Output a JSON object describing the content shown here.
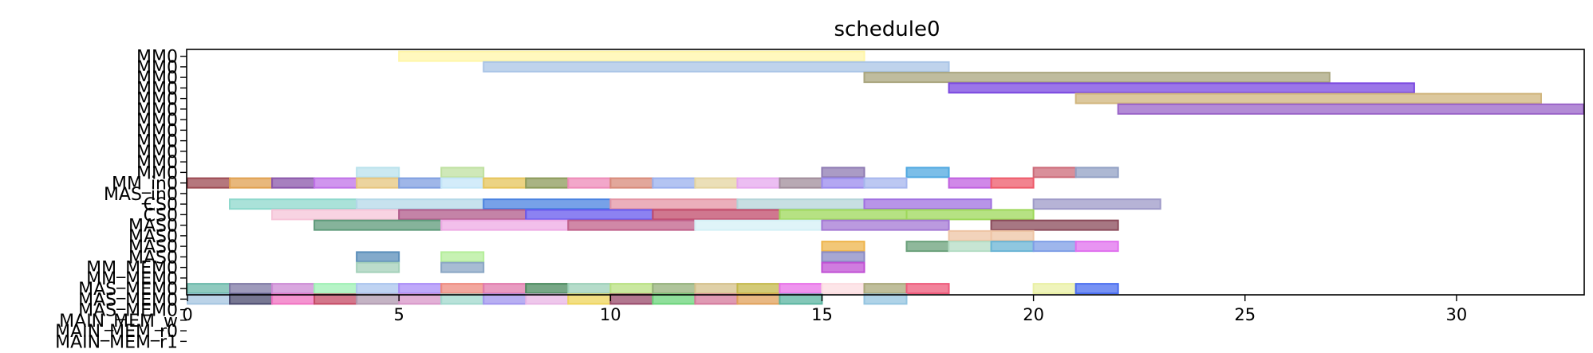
{
  "chart_data": {
    "type": "gantt",
    "title": "schedule0",
    "xlim": [
      0,
      33
    ],
    "xticks": [
      0,
      5,
      10,
      15,
      20,
      25,
      30
    ],
    "rows": [
      "MM0",
      "MM0",
      "MM0",
      "MM0",
      "MM0",
      "MM0",
      "MM0",
      "MM0",
      "MM0",
      "MM0",
      "MM0",
      "MM0",
      "MM_in0",
      "MAS_in0",
      "CS0",
      "CS0",
      "MAS0",
      "MAS0",
      "MAS0",
      "MAS0",
      "MM_MEM0",
      "MM_MEM0",
      "MAS_MEM0",
      "MAS_MEM0",
      "MAS_MEM0",
      "MAIN_MEM_w",
      "MAIN_MEM_r0",
      "MAIN_MEM_r1"
    ],
    "tasks": [
      {
        "row": 0,
        "start": 5,
        "end": 16,
        "color": "#fff6a8"
      },
      {
        "row": 1,
        "start": 7,
        "end": 18,
        "color": "#a9c4e6"
      },
      {
        "row": 2,
        "start": 16,
        "end": 27,
        "color": "#a9a57e"
      },
      {
        "row": 3,
        "start": 18,
        "end": 29,
        "color": "#7a48e0"
      },
      {
        "row": 4,
        "start": 21,
        "end": 32,
        "color": "#d0b57c"
      },
      {
        "row": 5,
        "start": 22,
        "end": 33,
        "color": "#9a64c8"
      },
      {
        "row": 11,
        "start": 4,
        "end": 5,
        "color": "#b9e2ec"
      },
      {
        "row": 11,
        "start": 6,
        "end": 7,
        "color": "#bfe0a0"
      },
      {
        "row": 11,
        "start": 15,
        "end": 16,
        "color": "#8e7ab2"
      },
      {
        "row": 11,
        "start": 17,
        "end": 18,
        "color": "#4fa8e0"
      },
      {
        "row": 11,
        "start": 20,
        "end": 21,
        "color": "#cc6a78"
      },
      {
        "row": 11,
        "start": 21,
        "end": 22,
        "color": "#91a0c4"
      },
      {
        "row": 12,
        "start": 0,
        "end": 1,
        "color": "#9c4a52"
      },
      {
        "row": 12,
        "start": 1,
        "end": 2,
        "color": "#e0a050"
      },
      {
        "row": 12,
        "start": 2,
        "end": 3,
        "color": "#8a56aa"
      },
      {
        "row": 12,
        "start": 3,
        "end": 4,
        "color": "#c071e8"
      },
      {
        "row": 12,
        "start": 4,
        "end": 5,
        "color": "#e6c57e"
      },
      {
        "row": 12,
        "start": 5,
        "end": 6,
        "color": "#7f9ee0"
      },
      {
        "row": 12,
        "start": 6,
        "end": 7,
        "color": "#c4e6f8"
      },
      {
        "row": 12,
        "start": 7,
        "end": 8,
        "color": "#e6c45a"
      },
      {
        "row": 12,
        "start": 8,
        "end": 9,
        "color": "#8c9a5a"
      },
      {
        "row": 12,
        "start": 9,
        "end": 10,
        "color": "#ee8ab8"
      },
      {
        "row": 12,
        "start": 10,
        "end": 11,
        "color": "#d88a7a"
      },
      {
        "row": 12,
        "start": 11,
        "end": 12,
        "color": "#9ab0ee"
      },
      {
        "row": 12,
        "start": 12,
        "end": 13,
        "color": "#e4d4a0"
      },
      {
        "row": 12,
        "start": 13,
        "end": 14,
        "color": "#e6a8ee"
      },
      {
        "row": 12,
        "start": 14,
        "end": 15,
        "color": "#a08c9a"
      },
      {
        "row": 12,
        "start": 15,
        "end": 16,
        "color": "#9a8aee"
      },
      {
        "row": 12,
        "start": 16,
        "end": 17,
        "color": "#a6b6ee"
      },
      {
        "row": 12,
        "start": 18,
        "end": 19,
        "color": "#c060e0"
      },
      {
        "row": 12,
        "start": 19,
        "end": 20,
        "color": "#ee5a6a"
      },
      {
        "row": 14,
        "start": 1,
        "end": 4,
        "color": "#8ed8cc"
      },
      {
        "row": 14,
        "start": 4,
        "end": 7,
        "color": "#b4d8e8"
      },
      {
        "row": 14,
        "start": 7,
        "end": 10,
        "color": "#4a82e0"
      },
      {
        "row": 14,
        "start": 10,
        "end": 13,
        "color": "#e494a4"
      },
      {
        "row": 14,
        "start": 13,
        "end": 16,
        "color": "#b4d4d8"
      },
      {
        "row": 14,
        "start": 16,
        "end": 19,
        "color": "#a070e0"
      },
      {
        "row": 14,
        "start": 20,
        "end": 23,
        "color": "#9e9ac8"
      },
      {
        "row": 15,
        "start": 2,
        "end": 5,
        "color": "#f6c4d8"
      },
      {
        "row": 15,
        "start": 5,
        "end": 8,
        "color": "#b05a8a"
      },
      {
        "row": 15,
        "start": 8,
        "end": 11,
        "color": "#6658ee"
      },
      {
        "row": 15,
        "start": 11,
        "end": 14,
        "color": "#c04a6a"
      },
      {
        "row": 15,
        "start": 14,
        "end": 17,
        "color": "#9ed85a"
      },
      {
        "row": 15,
        "start": 17,
        "end": 20,
        "color": "#9ed85a"
      },
      {
        "row": 16,
        "start": 3,
        "end": 6,
        "color": "#5e9a7a"
      },
      {
        "row": 16,
        "start": 6,
        "end": 9,
        "color": "#eeaae4"
      },
      {
        "row": 16,
        "start": 9,
        "end": 12,
        "color": "#c0608a"
      },
      {
        "row": 16,
        "start": 12,
        "end": 15,
        "color": "#d4f0f6"
      },
      {
        "row": 16,
        "start": 15,
        "end": 18,
        "color": "#a478d4"
      },
      {
        "row": 16,
        "start": 19,
        "end": 22,
        "color": "#8a4a5a"
      },
      {
        "row": 17,
        "start": 18,
        "end": 19,
        "color": "#eec4a4"
      },
      {
        "row": 17,
        "start": 19,
        "end": 20,
        "color": "#eec4a4"
      },
      {
        "row": 18,
        "start": 15,
        "end": 16,
        "color": "#eeb44a"
      },
      {
        "row": 18,
        "start": 17,
        "end": 18,
        "color": "#6aa07a"
      },
      {
        "row": 18,
        "start": 18,
        "end": 19,
        "color": "#b4dcc4"
      },
      {
        "row": 18,
        "start": 19,
        "end": 20,
        "color": "#6ab4d4"
      },
      {
        "row": 18,
        "start": 20,
        "end": 21,
        "color": "#7e9ee6"
      },
      {
        "row": 18,
        "start": 21,
        "end": 22,
        "color": "#e070ee"
      },
      {
        "row": 19,
        "start": 4,
        "end": 5,
        "color": "#5a8eba"
      },
      {
        "row": 19,
        "start": 6,
        "end": 7,
        "color": "#b4ee9a"
      },
      {
        "row": 19,
        "start": 15,
        "end": 16,
        "color": "#8a8ac4"
      },
      {
        "row": 20,
        "start": 4,
        "end": 5,
        "color": "#a4d0ba"
      },
      {
        "row": 20,
        "start": 6,
        "end": 7,
        "color": "#8aa6c4"
      },
      {
        "row": 20,
        "start": 15,
        "end": 16,
        "color": "#c050d4"
      },
      {
        "row": 22,
        "start": 0,
        "end": 1,
        "color": "#6ab8aa"
      },
      {
        "row": 22,
        "start": 1,
        "end": 2,
        "color": "#7e78a4"
      },
      {
        "row": 22,
        "start": 2,
        "end": 3,
        "color": "#cc8ad4"
      },
      {
        "row": 22,
        "start": 3,
        "end": 4,
        "color": "#9ef0b4"
      },
      {
        "row": 22,
        "start": 4,
        "end": 5,
        "color": "#aac4ee"
      },
      {
        "row": 22,
        "start": 5,
        "end": 6,
        "color": "#aa8cf8"
      },
      {
        "row": 22,
        "start": 6,
        "end": 7,
        "color": "#ee8a7e"
      },
      {
        "row": 22,
        "start": 7,
        "end": 8,
        "color": "#e07aac"
      },
      {
        "row": 22,
        "start": 8,
        "end": 9,
        "color": "#4a8a5e"
      },
      {
        "row": 22,
        "start": 9,
        "end": 10,
        "color": "#9cd0b8"
      },
      {
        "row": 22,
        "start": 10,
        "end": 11,
        "color": "#b8e080"
      },
      {
        "row": 22,
        "start": 11,
        "end": 12,
        "color": "#94b07a"
      },
      {
        "row": 22,
        "start": 12,
        "end": 13,
        "color": "#d4c08a"
      },
      {
        "row": 22,
        "start": 13,
        "end": 14,
        "color": "#c4b84a"
      },
      {
        "row": 22,
        "start": 14,
        "end": 15,
        "color": "#e870e8"
      },
      {
        "row": 22,
        "start": 15,
        "end": 16,
        "color": "#fcdce0"
      },
      {
        "row": 22,
        "start": 16,
        "end": 17,
        "color": "#aaa87a"
      },
      {
        "row": 22,
        "start": 17,
        "end": 18,
        "color": "#ee5a7a"
      },
      {
        "row": 22,
        "start": 20,
        "end": 21,
        "color": "#eaf0a4"
      },
      {
        "row": 22,
        "start": 21,
        "end": 22,
        "color": "#4a6ef0"
      },
      {
        "row": 23,
        "start": 0,
        "end": 1,
        "color": "#a4c4e0"
      },
      {
        "row": 23,
        "start": 1,
        "end": 2,
        "color": "#4a4a6e"
      },
      {
        "row": 23,
        "start": 2,
        "end": 3,
        "color": "#f070c0"
      },
      {
        "row": 23,
        "start": 3,
        "end": 4,
        "color": "#c44a64"
      },
      {
        "row": 23,
        "start": 4,
        "end": 5,
        "color": "#b09ab0"
      },
      {
        "row": 23,
        "start": 5,
        "end": 6,
        "color": "#d896c8"
      },
      {
        "row": 23,
        "start": 6,
        "end": 7,
        "color": "#a0d8cc"
      },
      {
        "row": 23,
        "start": 7,
        "end": 8,
        "color": "#a094ee"
      },
      {
        "row": 23,
        "start": 8,
        "end": 9,
        "color": "#e8b4e4"
      },
      {
        "row": 23,
        "start": 9,
        "end": 10,
        "color": "#eed45a"
      },
      {
        "row": 23,
        "start": 10,
        "end": 11,
        "color": "#984a6a"
      },
      {
        "row": 23,
        "start": 11,
        "end": 12,
        "color": "#6ad47a"
      },
      {
        "row": 23,
        "start": 12,
        "end": 13,
        "color": "#d4789a"
      },
      {
        "row": 23,
        "start": 13,
        "end": 14,
        "color": "#e0a05a"
      },
      {
        "row": 23,
        "start": 14,
        "end": 15,
        "color": "#5ab4a0"
      },
      {
        "row": 23,
        "start": 16,
        "end": 17,
        "color": "#94c4e0"
      }
    ]
  }
}
